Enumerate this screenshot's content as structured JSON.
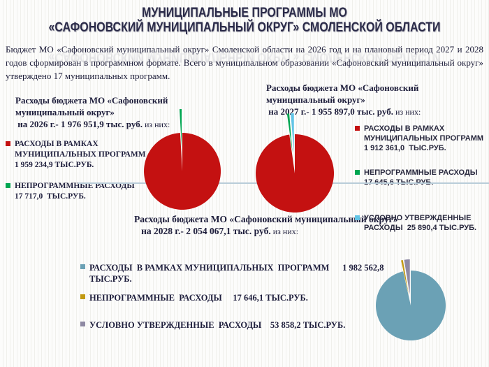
{
  "slide": {
    "title_line1": "МУНИЦИПАЛЬНЫЕ ПРОГРАММЫ МО",
    "title_line2": "«САФОНОВСКИЙ МУНИЦИПАЛЬНЫЙ ОКРУГ» СМОЛЕНСКОЙ ОБЛАСТИ",
    "intro": "Бюджет МО «Сафоновский муниципальный округ» Смоленской области на 2026 год и на плановый период 2027 и 2028 годов сформирован в программном формате. Всего в муниципальном образовании «Сафоновский муниципальный округ» утверждено 17 муниципальных программ."
  },
  "palette": {
    "program_red": "#c41111",
    "nonprogram_green": "#00a651",
    "conditional_lightblue": "#63c5e6",
    "program_steelblue": "#6ba1b5",
    "nonprogram_gold": "#c29a12",
    "conditional_graypurple": "#8e89a3",
    "title_navy": "#2b2b49",
    "connector_line": "#b9cdd9"
  },
  "chart_titles": {
    "y2026": {
      "l1": "Расходы бюджета МО «Сафоновский",
      "l2": "муниципальный округ»",
      "l3_strong": " на 2026 г.- 1 976 951,9 тыс. руб.",
      "l3_tail": " из них:"
    },
    "y2027": {
      "l1": "Расходы бюджета МО «Сафоновский",
      "l2": "муниципальный округ»",
      "l3_strong": " на 2027 г.- 1 955 897,0 тыс. руб.",
      "l3_tail": " из них:"
    },
    "y2028": {
      "l1": "Расходы бюджета МО «Сафоновский муниципальный округ»",
      "l2_strong": "   на 2028 г.- 2 054 067,1 тыс. руб.",
      "l2_tail": " из них:"
    }
  },
  "legends": {
    "y2026": {
      "items": [
        {
          "color": "#c41111",
          "lines": [
            "РАСХОДЫ В РАМКАХ",
            "МУНИЦИПАЛЬНЫХ ПРОГРАММ",
            "1 959 234,9 ТЫС.РУБ."
          ]
        },
        {
          "color": "#00a651",
          "lines": [
            "НЕПРОГРАММНЫЕ РАСХОДЫ",
            "17 717,0  ТЫС.РУБ."
          ]
        }
      ]
    },
    "y2027": {
      "items": [
        {
          "color": "#c41111",
          "lines": [
            "РАСХОДЫ В РАМКАХ",
            "МУНИЦИПАЛЬНЫХ ПРОГРАММ",
            "1 912 361,0  ТЫС.РУБ."
          ]
        },
        {
          "color": "#00a651",
          "lines": [
            "НЕПРОГРАММНЫЕ РАСХОДЫ",
            "17 645,6 ТЫС.РУБ."
          ]
        },
        {
          "color": "#63c5e6",
          "lines": [
            "УСЛОВНО УТВЕРЖДЕННЫЕ",
            "РАСХОДЫ  25 890,4 ТЫС.РУБ."
          ]
        }
      ]
    },
    "y2028": {
      "items": [
        {
          "color": "#6ba1b5",
          "lines": [
            "РАСХОДЫ  В РАМКАХ МУНИЦИПАЛЬНЫХ  ПРОГРАММ      1 982 562,8",
            "ТЫС.РУБ."
          ]
        },
        {
          "color": "#c29a12",
          "lines": [
            "НЕПРОГРАММНЫЕ  РАСХОДЫ     17 646,1 ТЫС.РУБ."
          ]
        },
        {
          "color": "#8e89a3",
          "lines": [
            "УСЛОВНО УТВЕРЖДЕННЫЕ  РАСХОДЫ    53 858,2 ТЫС.РУБ."
          ]
        }
      ]
    }
  },
  "chart_data": [
    {
      "type": "pie",
      "title": "Расходы бюджета МО «Сафоновский муниципальный округ» на 2026 г.- 1 976 951,9 тыс. руб. из них:",
      "year": 2026,
      "total": 1976951.9,
      "unit": "тыс. руб.",
      "categories": [
        "РАСХОДЫ В РАМКАХ МУНИЦИПАЛЬНЫХ ПРОГРАММ",
        "НЕПРОГРАММНЫЕ РАСХОДЫ"
      ],
      "values": [
        1959234.9,
        17717.0
      ],
      "colors": [
        "#c41111",
        "#00a651"
      ],
      "legend_position": "left"
    },
    {
      "type": "pie",
      "title": "Расходы бюджета МО «Сафоновский муниципальный округ» на 2027 г.- 1 955 897,0 тыс. руб. из них:",
      "year": 2027,
      "total": 1955897.0,
      "unit": "тыс. руб.",
      "categories": [
        "РАСХОДЫ В РАМКАХ МУНИЦИПАЛЬНЫХ ПРОГРАММ",
        "НЕПРОГРАММНЫЕ РАСХОДЫ",
        "УСЛОВНО УТВЕРЖДЕННЫЕ РАСХОДЫ"
      ],
      "values": [
        1912361.0,
        17645.6,
        25890.4
      ],
      "colors": [
        "#c41111",
        "#00a651",
        "#63c5e6"
      ],
      "legend_position": "right"
    },
    {
      "type": "pie",
      "title": "Расходы бюджета МО «Сафоновский муниципальный округ» на 2028 г.- 2 054 067,1 тыс. руб. из них:",
      "year": 2028,
      "total": 2054067.1,
      "unit": "тыс. руб.",
      "categories": [
        "РАСХОДЫ В РАМКАХ МУНИЦИПАЛЬНЫХ ПРОГРАММ",
        "НЕПРОГРАММНЫЕ РАСХОДЫ",
        "УСЛОВНО УТВЕРЖДЕННЫЕ РАСХОДЫ"
      ],
      "values": [
        1982562.8,
        17646.1,
        53858.2
      ],
      "colors": [
        "#6ba1b5",
        "#c29a12",
        "#8e89a3"
      ],
      "legend_position": "left"
    }
  ]
}
